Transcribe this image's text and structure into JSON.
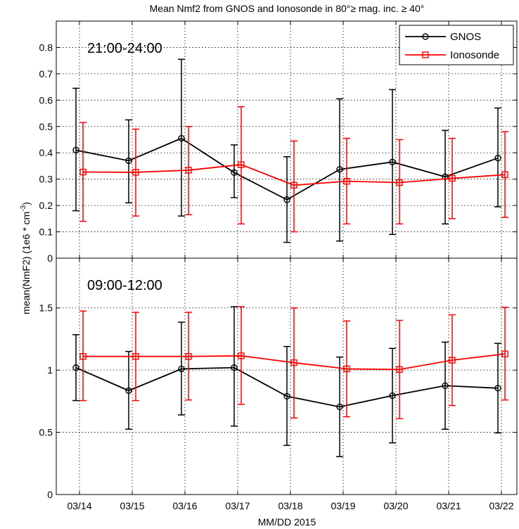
{
  "chart_data": {
    "title": "Mean Nmf2 from GNOS and Ionosonde in 80°≥ mag. inc. ≥ 40°",
    "xlabel": "MM/DD 2015",
    "ylabel": "mean(NmF2) (1e6 * cm",
    "ylabel_sup": "-3",
    "ylabel_close": ")",
    "categories": [
      "03/14",
      "03/15",
      "03/16",
      "03/17",
      "03/18",
      "03/19",
      "03/20",
      "03/21",
      "03/22"
    ],
    "legend": [
      {
        "name": "GNOS",
        "color": "#000000",
        "marker": "circle"
      },
      {
        "name": "Ionosonde",
        "color": "#ff0000",
        "marker": "square"
      }
    ],
    "legend_position": "top-right",
    "grid": true,
    "panels": [
      {
        "id": "top",
        "annotation": "21:00-24:00",
        "type": "line",
        "ylim": [
          0,
          0.9
        ],
        "yticks": [
          0,
          0.1,
          0.2,
          0.3,
          0.4,
          0.5,
          0.6,
          0.7,
          0.8
        ],
        "ytick_labels": [
          "0",
          "0.1",
          "0.2",
          "0.3",
          "0.4",
          "0.5",
          "0.6",
          "0.7",
          "0.8"
        ],
        "show_legend": true,
        "series": [
          {
            "name": "GNOS",
            "color": "#000000",
            "values": [
              0.41,
              0.37,
              0.455,
              0.325,
              0.222,
              0.337,
              0.365,
              0.309,
              0.38
            ],
            "err_low": [
              0.18,
              0.21,
              0.16,
              0.23,
              0.06,
              0.065,
              0.09,
              0.13,
              0.195
            ],
            "err_high": [
              0.645,
              0.525,
              0.755,
              0.43,
              0.385,
              0.605,
              0.64,
              0.485,
              0.57
            ]
          },
          {
            "name": "Ionosonde",
            "color": "#ff0000",
            "values": [
              0.327,
              0.326,
              0.334,
              0.355,
              0.277,
              0.292,
              0.287,
              0.303,
              0.317
            ],
            "err_low": [
              0.14,
              0.16,
              0.165,
              0.13,
              0.1,
              0.13,
              0.13,
              0.15,
              0.155
            ],
            "err_high": [
              0.515,
              0.49,
              0.5,
              0.575,
              0.445,
              0.455,
              0.45,
              0.455,
              0.48
            ]
          }
        ]
      },
      {
        "id": "bottom",
        "annotation": "09:00-12:00",
        "type": "line",
        "ylim": [
          0,
          1.9
        ],
        "yticks": [
          0,
          0.5,
          1,
          1.5
        ],
        "ytick_labels": [
          "0",
          "0.5",
          "1",
          "1.5"
        ],
        "show_legend": false,
        "series": [
          {
            "name": "GNOS",
            "color": "#000000",
            "values": [
              1.02,
              0.835,
              1.01,
              1.02,
              0.79,
              0.705,
              0.795,
              0.875,
              0.855
            ],
            "err_low": [
              0.755,
              0.525,
              0.64,
              0.55,
              0.395,
              0.305,
              0.415,
              0.525,
              0.495
            ],
            "err_high": [
              1.285,
              1.15,
              1.385,
              1.51,
              1.19,
              1.105,
              1.175,
              1.225,
              1.215
            ]
          },
          {
            "name": "Ionosonde",
            "color": "#ff0000",
            "values": [
              1.11,
              1.11,
              1.11,
              1.115,
              1.06,
              1.01,
              1.005,
              1.08,
              1.13
            ],
            "err_low": [
              0.755,
              0.755,
              0.76,
              0.725,
              0.615,
              0.625,
              0.61,
              0.715,
              0.76
            ],
            "err_high": [
              1.475,
              1.465,
              1.465,
              1.51,
              1.5,
              1.395,
              1.4,
              1.445,
              1.505
            ]
          }
        ]
      }
    ]
  }
}
